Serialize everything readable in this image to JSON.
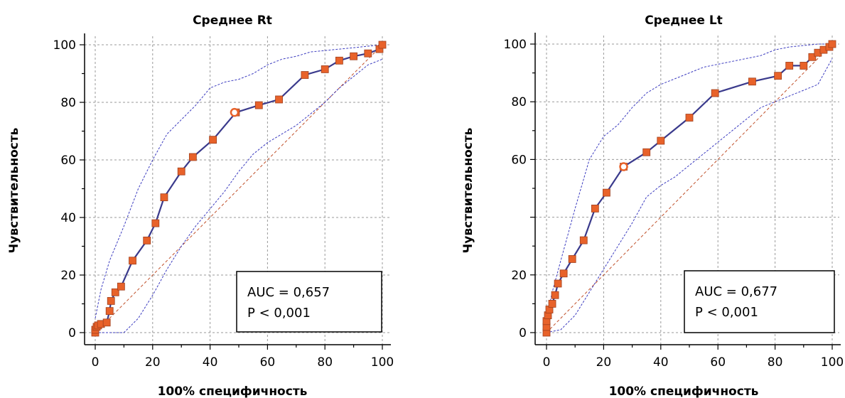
{
  "chart_data": [
    {
      "type": "line",
      "title": "Среднее Rt",
      "xlabel": "100% специфичность",
      "ylabel": "Чувствительность",
      "xlim": [
        0,
        100
      ],
      "ylim": [
        0,
        100
      ],
      "x_ticks": [
        "0",
        "20",
        "40",
        "60",
        "80",
        "100"
      ],
      "y_ticks": [
        "0",
        "20",
        "40",
        "60",
        "80",
        "100"
      ],
      "grid": true,
      "auc_label": "AUC = 0,657",
      "p_label": "P < 0,001",
      "colors": {
        "roc": "#3a3a8c",
        "marker": "#e8622a",
        "ci": "#3d3dc0",
        "diagonal": "#c0502a"
      },
      "roc": [
        [
          0,
          0
        ],
        [
          0,
          1
        ],
        [
          0.5,
          2
        ],
        [
          1,
          2.5
        ],
        [
          2,
          3
        ],
        [
          4,
          3.5
        ],
        [
          5,
          7.5
        ],
        [
          5.5,
          11
        ],
        [
          7,
          14
        ],
        [
          9,
          16
        ],
        [
          13,
          25
        ],
        [
          18,
          32
        ],
        [
          21,
          38
        ],
        [
          24,
          47
        ],
        [
          30,
          56
        ],
        [
          34,
          61
        ],
        [
          41,
          67
        ],
        [
          49,
          76.5
        ],
        [
          57,
          79
        ],
        [
          64,
          81
        ],
        [
          73,
          89.5
        ],
        [
          80,
          91.5
        ],
        [
          85,
          94.5
        ],
        [
          90,
          96
        ],
        [
          95,
          97
        ],
        [
          99,
          98.5
        ],
        [
          100,
          100
        ]
      ],
      "cutoff_point": [
        48.5,
        76.5
      ],
      "ci_upper": [
        [
          0,
          5
        ],
        [
          2,
          15
        ],
        [
          5,
          25
        ],
        [
          10,
          37
        ],
        [
          15,
          50
        ],
        [
          20,
          60
        ],
        [
          25,
          69
        ],
        [
          30,
          74
        ],
        [
          35,
          79
        ],
        [
          40,
          85
        ],
        [
          45,
          87
        ],
        [
          50,
          88
        ],
        [
          55,
          90
        ],
        [
          60,
          93
        ],
        [
          65,
          95
        ],
        [
          70,
          96
        ],
        [
          75,
          97.5
        ],
        [
          80,
          98
        ],
        [
          85,
          98.5
        ],
        [
          90,
          99
        ],
        [
          95,
          99.5
        ],
        [
          100,
          100
        ]
      ],
      "ci_lower": [
        [
          0,
          0
        ],
        [
          10,
          0
        ],
        [
          15,
          5
        ],
        [
          20,
          13
        ],
        [
          25,
          22
        ],
        [
          30,
          30
        ],
        [
          35,
          37
        ],
        [
          40,
          43
        ],
        [
          45,
          49
        ],
        [
          50,
          56
        ],
        [
          55,
          62
        ],
        [
          60,
          66
        ],
        [
          65,
          69
        ],
        [
          70,
          72
        ],
        [
          75,
          76
        ],
        [
          80,
          80
        ],
        [
          85,
          85
        ],
        [
          90,
          89
        ],
        [
          95,
          93
        ],
        [
          100,
          95
        ]
      ]
    },
    {
      "type": "line",
      "title": "Среднее Lt",
      "xlabel": "100% специфичность",
      "ylabel": "Чувствительность",
      "xlim": [
        0,
        100
      ],
      "ylim": [
        0,
        100
      ],
      "x_ticks": [
        "0",
        "20",
        "40",
        "60",
        "80",
        "100"
      ],
      "y_ticks": [
        "0",
        "20",
        "60",
        "80",
        "100"
      ],
      "grid": true,
      "auc_label": "AUC = 0,677",
      "p_label": "P < 0,001",
      "colors": {
        "roc": "#3a3a8c",
        "marker": "#e8622a",
        "ci": "#3d3dc0",
        "diagonal": "#c0502a"
      },
      "roc": [
        [
          0,
          0
        ],
        [
          0,
          2
        ],
        [
          0,
          4
        ],
        [
          0.5,
          6
        ],
        [
          1,
          8
        ],
        [
          2,
          10
        ],
        [
          3,
          13
        ],
        [
          4,
          17
        ],
        [
          6,
          20.5
        ],
        [
          9,
          25.5
        ],
        [
          13,
          32
        ],
        [
          17,
          43
        ],
        [
          21,
          48.5
        ],
        [
          27,
          57.5
        ],
        [
          35,
          62.5
        ],
        [
          40,
          66.5
        ],
        [
          50,
          74.5
        ],
        [
          59,
          83
        ],
        [
          72,
          87
        ],
        [
          81,
          89
        ],
        [
          85,
          92.5
        ],
        [
          90,
          92.5
        ],
        [
          93,
          95.5
        ],
        [
          95,
          97
        ],
        [
          97,
          98
        ],
        [
          99,
          99
        ],
        [
          100,
          100
        ]
      ],
      "cutoff_point": [
        27,
        57.5
      ],
      "ci_upper": [
        [
          0,
          5
        ],
        [
          2,
          14
        ],
        [
          5,
          25
        ],
        [
          10,
          43
        ],
        [
          15,
          60
        ],
        [
          20,
          68
        ],
        [
          25,
          72
        ],
        [
          30,
          78
        ],
        [
          35,
          83
        ],
        [
          40,
          86
        ],
        [
          45,
          88
        ],
        [
          50,
          90
        ],
        [
          55,
          92
        ],
        [
          60,
          93
        ],
        [
          65,
          94
        ],
        [
          70,
          95
        ],
        [
          75,
          96
        ],
        [
          80,
          98
        ],
        [
          85,
          99
        ],
        [
          90,
          99.5
        ],
        [
          95,
          100
        ],
        [
          100,
          100
        ]
      ],
      "ci_lower": [
        [
          0,
          0
        ],
        [
          5,
          1
        ],
        [
          10,
          6
        ],
        [
          15,
          14
        ],
        [
          20,
          22
        ],
        [
          25,
          30
        ],
        [
          30,
          38
        ],
        [
          35,
          47
        ],
        [
          40,
          51
        ],
        [
          45,
          54
        ],
        [
          50,
          58
        ],
        [
          55,
          62
        ],
        [
          60,
          66
        ],
        [
          65,
          70
        ],
        [
          70,
          74
        ],
        [
          75,
          78
        ],
        [
          80,
          80
        ],
        [
          85,
          82
        ],
        [
          90,
          84
        ],
        [
          95,
          86
        ],
        [
          100,
          95
        ]
      ]
    }
  ]
}
